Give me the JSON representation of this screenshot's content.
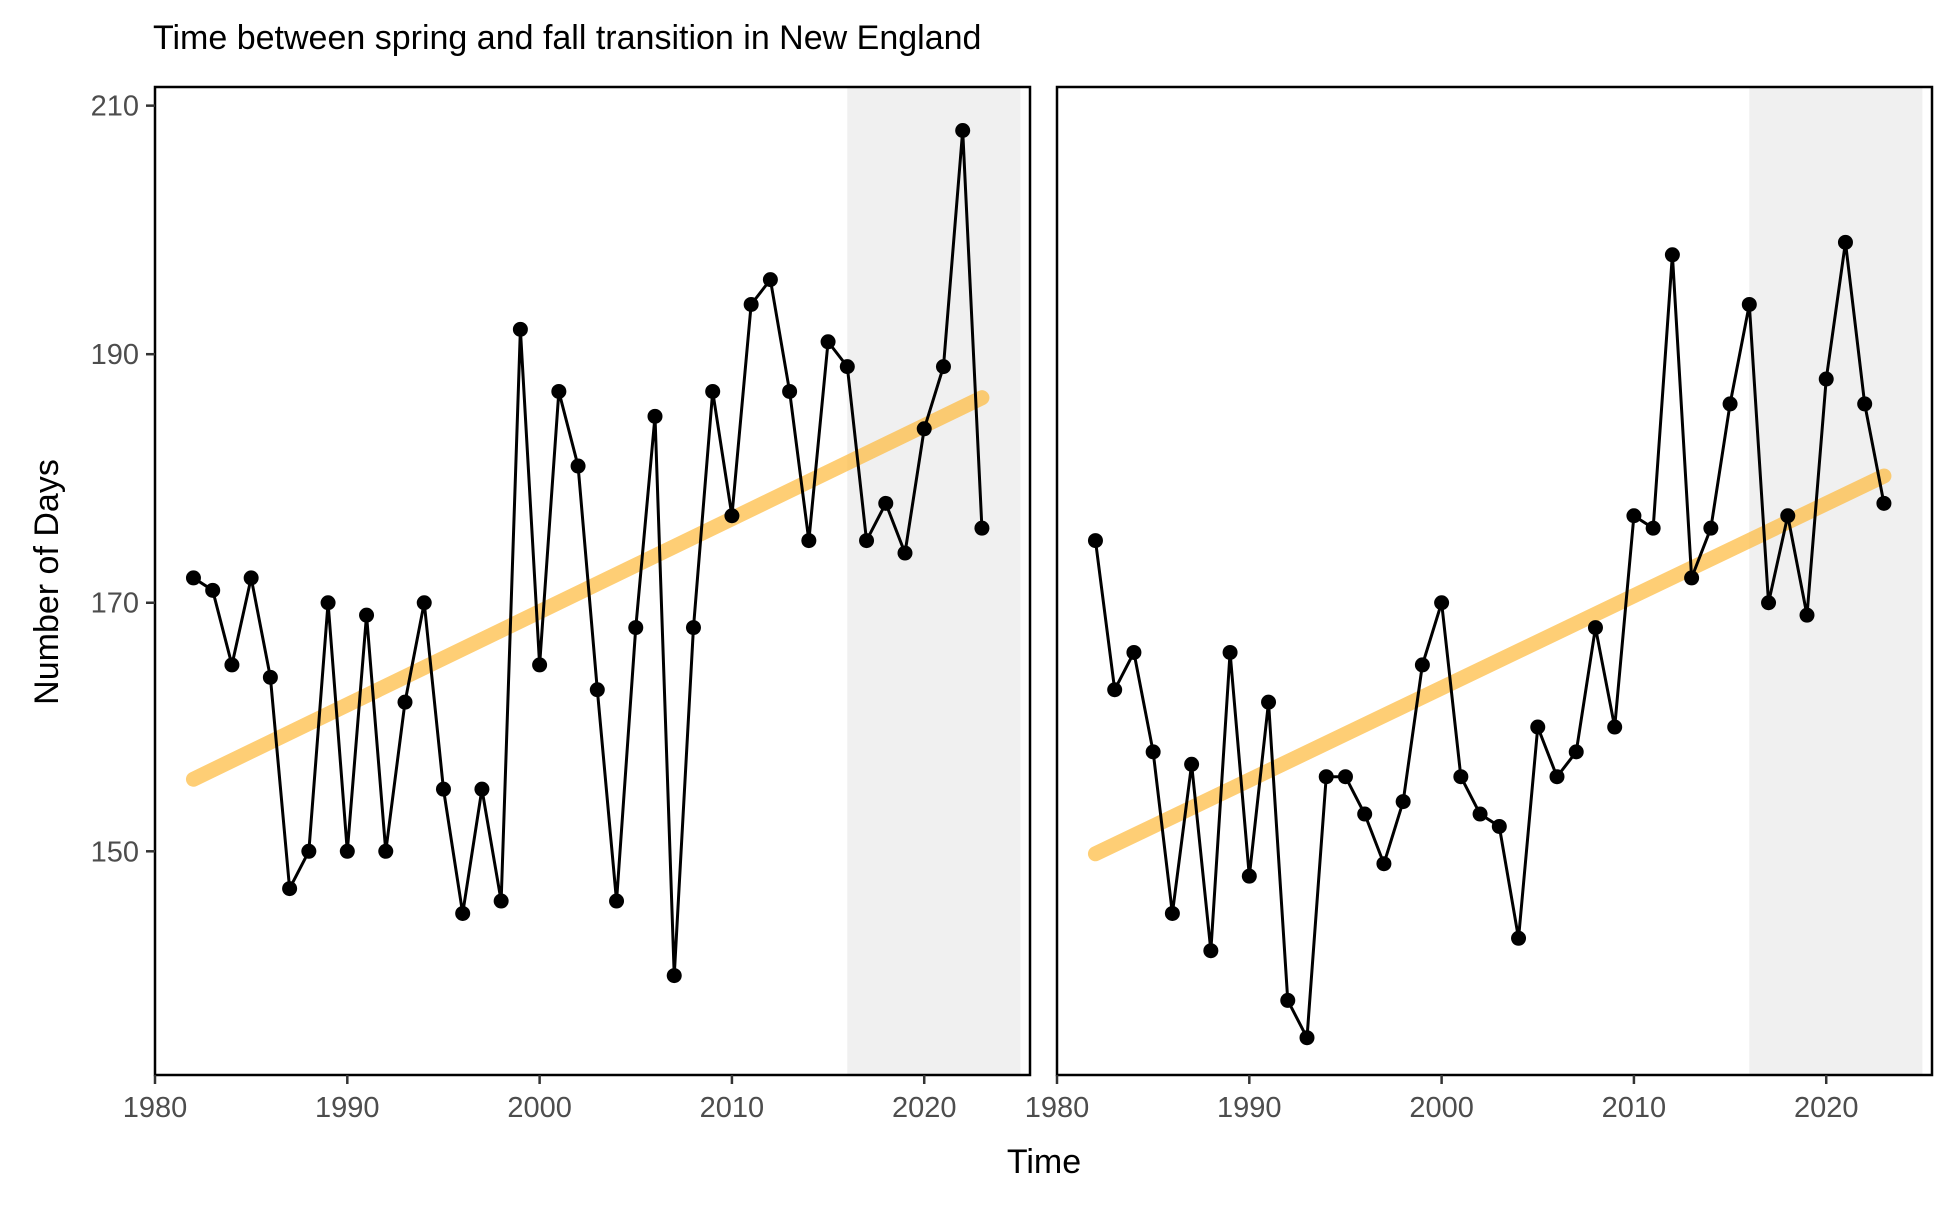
{
  "chart_data": {
    "type": "line",
    "title": "Time between spring and fall transition in New England",
    "xlabel": "Time",
    "ylabel": "Number of Days",
    "xlim": [
      1980,
      2025.5
    ],
    "ylim": [
      132,
      211.5
    ],
    "x_ticks": [
      1980,
      1990,
      2000,
      2010,
      2020
    ],
    "y_ticks": [
      150,
      170,
      190,
      210
    ],
    "highlight_range": [
      2016,
      2025
    ],
    "colors": {
      "series": "#000000",
      "trend": "#FDB93A",
      "highlight": "#F0F0F0",
      "axis_text": "#4D4D4D"
    },
    "panels": [
      {
        "x": [
          1982,
          1983,
          1984,
          1985,
          1986,
          1987,
          1988,
          1989,
          1990,
          1991,
          1992,
          1993,
          1994,
          1995,
          1996,
          1997,
          1998,
          1999,
          2000,
          2001,
          2002,
          2003,
          2004,
          2005,
          2006,
          2007,
          2008,
          2009,
          2010,
          2011,
          2012,
          2013,
          2014,
          2015,
          2016,
          2017,
          2018,
          2019,
          2020,
          2021,
          2022,
          2023
        ],
        "values": [
          172,
          171,
          165,
          172,
          164,
          147,
          150,
          170,
          150,
          169,
          150,
          162,
          170,
          155,
          145,
          155,
          146,
          192,
          165,
          187,
          181,
          163,
          146,
          168,
          185,
          140,
          168,
          187,
          177,
          194,
          196,
          187,
          175,
          191,
          189,
          175,
          178,
          174,
          184,
          189,
          208,
          176
        ],
        "trend": {
          "x": [
            1982,
            2023
          ],
          "y": [
            155.8,
            186.5
          ]
        }
      },
      {
        "x": [
          1982,
          1983,
          1984,
          1985,
          1986,
          1987,
          1988,
          1989,
          1990,
          1991,
          1992,
          1993,
          1994,
          1995,
          1996,
          1997,
          1998,
          1999,
          2000,
          2001,
          2002,
          2003,
          2004,
          2005,
          2006,
          2007,
          2008,
          2009,
          2010,
          2011,
          2012,
          2013,
          2014,
          2015,
          2016,
          2017,
          2018,
          2019,
          2020,
          2021,
          2022,
          2023
        ],
        "values": [
          175,
          163,
          166,
          158,
          145,
          157,
          142,
          166,
          148,
          162,
          138,
          135,
          156,
          156,
          153,
          149,
          154,
          165,
          170,
          156,
          153,
          152,
          143,
          160,
          156,
          158,
          168,
          160,
          177,
          176,
          198,
          172,
          176,
          186,
          194,
          170,
          177,
          169,
          188,
          199,
          186,
          178
        ],
        "trend": {
          "x": [
            1982,
            2023
          ],
          "y": [
            149.8,
            180.2
          ]
        }
      }
    ]
  }
}
